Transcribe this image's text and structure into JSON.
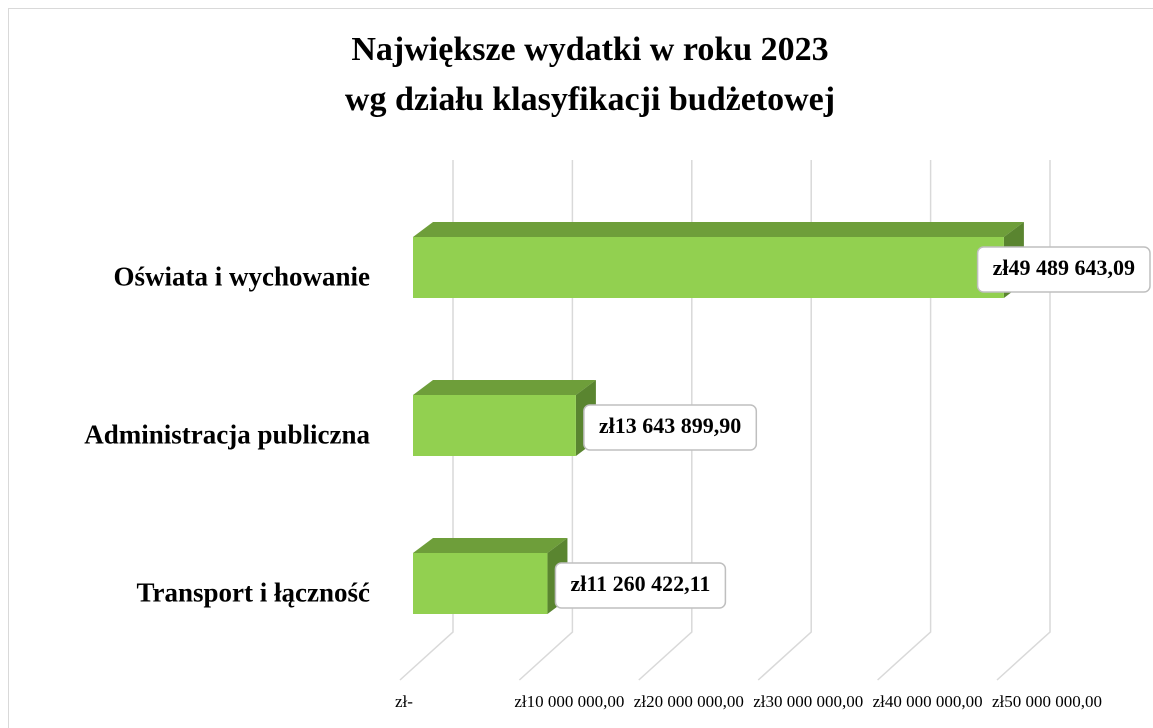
{
  "chart_data": {
    "type": "bar3d_horizontal",
    "title": "Największe wydatki w roku 2023",
    "subtitle": "wg działu klasyfikacji budżetowej",
    "categories": [
      "Oświata i wychowanie",
      "Administracja publiczna",
      "Transport i łączność"
    ],
    "values": [
      49489643.09,
      13643899.9,
      11260422.11
    ],
    "value_labels": [
      "zł49 489 643,09",
      "zł13 643 899,90",
      "zł11 260 422,11"
    ],
    "color": "#92d050",
    "xlim": [
      0,
      50000000
    ],
    "xticks": [
      {
        "value": 0,
        "label": "zł-"
      },
      {
        "value": 10000000,
        "label": "zł10 000 000,00"
      },
      {
        "value": 20000000,
        "label": "zł20 000 000,00"
      },
      {
        "value": 30000000,
        "label": "zł30 000 000,00"
      },
      {
        "value": 40000000,
        "label": "zł40 000 000,00"
      },
      {
        "value": 50000000,
        "label": "zł50 000 000,00"
      }
    ],
    "grid": true
  }
}
